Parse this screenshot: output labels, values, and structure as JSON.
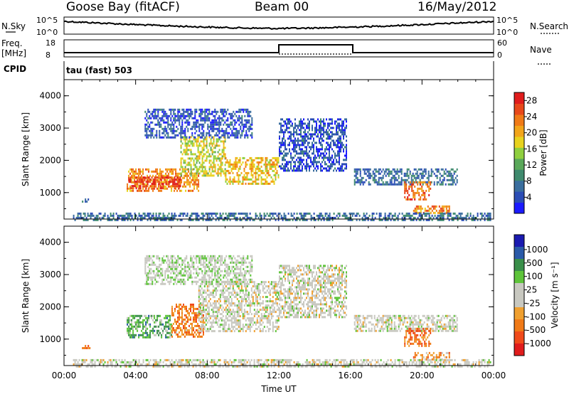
{
  "header": {
    "station": "Goose Bay (fitACF)",
    "beam": "Beam 00",
    "date": "16/May/2012"
  },
  "status_panel": {
    "nsky_label": "N.Sky",
    "nsky_ticks": [
      "10^5",
      "10^0"
    ],
    "nsearch_label": "N.Search",
    "nsearch_ticks": [
      "10^5",
      "10^0"
    ],
    "freq_label": "Freq.",
    "freq_unit": "[MHz]",
    "freq_ticks": [
      "18",
      "8"
    ],
    "nave_label": "Nave",
    "nave_ticks": [
      "60",
      "0"
    ],
    "cpid_label": "CPID",
    "cpid_text": "tau (fast) 503"
  },
  "chart_data": [
    {
      "type": "heatmap",
      "name": "power",
      "ylabel": "Slant Range [km]",
      "yticks": [
        "1000",
        "2000",
        "3000",
        "4000"
      ],
      "ylim": [
        180,
        4500
      ],
      "xlim_hours": [
        0,
        24
      ],
      "colorbar": {
        "label": "Power [dB]",
        "ticks": [
          "4",
          "8",
          "12",
          "16",
          "20",
          "24",
          "28"
        ],
        "range": [
          0,
          30
        ],
        "colors": [
          "#1a1aff",
          "#2b4db5",
          "#3a6e9e",
          "#3f8a6e",
          "#5aa85a",
          "#8fcf3f",
          "#e8d21e",
          "#f2a51a",
          "#f07a17",
          "#e8481a",
          "#e01c1c"
        ]
      },
      "echo_regions": [
        {
          "t0": 1.0,
          "t1": 1.4,
          "r0": 700,
          "r1": 820,
          "level": 0.25
        },
        {
          "t0": 3.5,
          "t1": 7.5,
          "r0": 1050,
          "r1": 1750,
          "level": 0.75
        },
        {
          "t0": 3.6,
          "t1": 6.5,
          "r0": 1150,
          "r1": 1500,
          "level": 0.95
        },
        {
          "t0": 6.5,
          "t1": 9.0,
          "r0": 1550,
          "r1": 2750,
          "level": 0.55
        },
        {
          "t0": 9.0,
          "t1": 12.0,
          "r0": 1250,
          "r1": 2100,
          "level": 0.65
        },
        {
          "t0": 4.5,
          "t1": 10.5,
          "r0": 2700,
          "r1": 3600,
          "level": 0.12
        },
        {
          "t0": 12.0,
          "t1": 15.8,
          "r0": 1700,
          "r1": 3300,
          "level": 0.12
        },
        {
          "t0": 16.2,
          "t1": 22.0,
          "r0": 1250,
          "r1": 1750,
          "level": 0.2
        },
        {
          "t0": 19.0,
          "t1": 20.5,
          "r0": 800,
          "r1": 1350,
          "level": 0.85
        },
        {
          "t0": 19.5,
          "t1": 21.5,
          "r0": 380,
          "r1": 600,
          "level": 0.75
        },
        {
          "t0": 0.5,
          "t1": 23.8,
          "r0": 180,
          "r1": 380,
          "level": 0.2
        }
      ]
    },
    {
      "type": "heatmap",
      "name": "velocity",
      "ylabel": "Slant Range [km]",
      "yticks": [
        "1000",
        "2000",
        "3000",
        "4000"
      ],
      "ylim": [
        180,
        4500
      ],
      "xlabel": "Time UT",
      "xticks": [
        "00:00",
        "04:00",
        "08:00",
        "12:00",
        "16:00",
        "20:00",
        "00:00"
      ],
      "xlim_hours": [
        0,
        24
      ],
      "colorbar": {
        "label": "Velocity [m s⁻¹]",
        "ticks": [
          "1000",
          "500",
          "100",
          "25",
          "-25",
          "-100",
          "-500",
          "-1000"
        ],
        "colors": [
          "#1a1ab0",
          "#2a5aa8",
          "#3a8f4a",
          "#5ec43a",
          "#c8c8c0",
          "#c8c8c0",
          "#f0a030",
          "#f07a17",
          "#f04a1a",
          "#e01c1c"
        ]
      },
      "echo_regions": [
        {
          "t0": 1.0,
          "t1": 1.4,
          "r0": 700,
          "r1": 820,
          "level": 0.75
        },
        {
          "t0": 3.5,
          "t1": 6.0,
          "r0": 1050,
          "r1": 1750,
          "level": 0.3
        },
        {
          "t0": 6.0,
          "t1": 7.8,
          "r0": 1100,
          "r1": 2100,
          "level": 0.75
        },
        {
          "t0": 7.5,
          "t1": 12.0,
          "r0": 1250,
          "r1": 2800,
          "level": 0.5
        },
        {
          "t0": 4.5,
          "t1": 10.5,
          "r0": 2700,
          "r1": 3600,
          "level": 0.45
        },
        {
          "t0": 12.0,
          "t1": 15.8,
          "r0": 1700,
          "r1": 3300,
          "level": 0.5
        },
        {
          "t0": 16.2,
          "t1": 22.0,
          "r0": 1250,
          "r1": 1750,
          "level": 0.5
        },
        {
          "t0": 19.0,
          "t1": 20.5,
          "r0": 800,
          "r1": 1350,
          "level": 0.8
        },
        {
          "t0": 19.5,
          "t1": 21.5,
          "r0": 380,
          "r1": 600,
          "level": 0.7
        },
        {
          "t0": 0.5,
          "t1": 23.8,
          "r0": 180,
          "r1": 380,
          "level": 0.5
        }
      ]
    }
  ]
}
